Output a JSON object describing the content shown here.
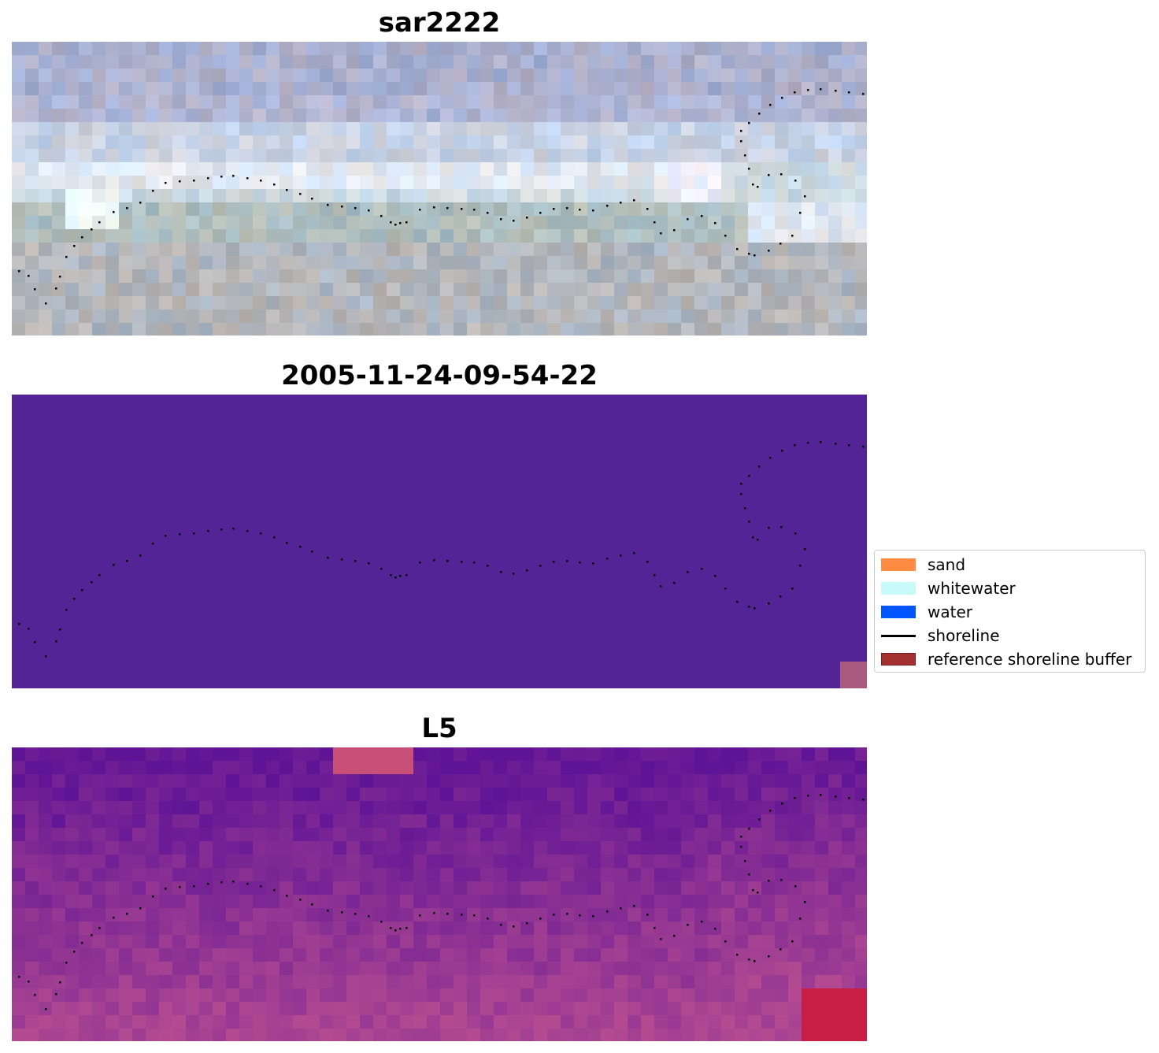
{
  "panels": [
    {
      "title": "sar2222",
      "kind": "rgb"
    },
    {
      "title": "2005-11-24-09-54-22",
      "kind": "classified"
    },
    {
      "title": "L5",
      "kind": "index"
    }
  ],
  "legend": {
    "items": [
      {
        "label": "sand",
        "color": "#ff8c42",
        "kind": "patch"
      },
      {
        "label": "whitewater",
        "color": "#c8fafa",
        "kind": "patch"
      },
      {
        "label": "water",
        "color": "#0055ff",
        "kind": "patch"
      },
      {
        "label": "shoreline",
        "color": "#000000",
        "kind": "line"
      },
      {
        "label": "reference shoreline buffer",
        "color": "#a33030",
        "kind": "patch"
      }
    ]
  },
  "colors": {
    "classified_background": "#522496",
    "buffer_tint": "#a85a7f"
  }
}
